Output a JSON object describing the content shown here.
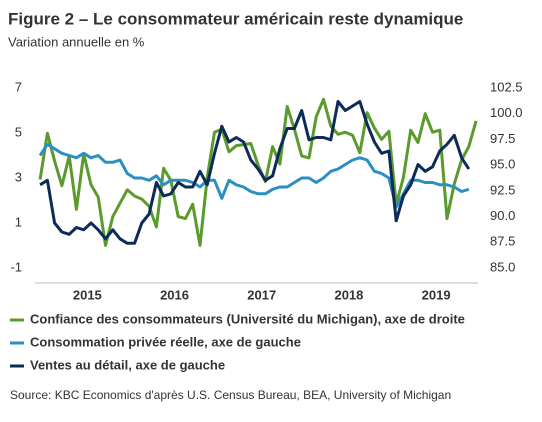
{
  "chart_data": {
    "type": "line",
    "title": "Figure 2 – Le consommateur américain reste dynamique",
    "subtitle": "Variation annuelle en %",
    "source": "Source: KBC Economics d'après U.S. Census Bureau, BEA, University of Michigan",
    "x": [
      2014.958,
      2015.042,
      2015.125,
      2015.208,
      2015.292,
      2015.375,
      2015.458,
      2015.542,
      2015.625,
      2015.708,
      2015.792,
      2015.875,
      2015.958,
      2016.042,
      2016.125,
      2016.208,
      2016.292,
      2016.375,
      2016.458,
      2016.542,
      2016.625,
      2016.708,
      2016.792,
      2016.875,
      2016.958,
      2017.042,
      2017.125,
      2017.208,
      2017.292,
      2017.375,
      2017.458,
      2017.542,
      2017.625,
      2017.708,
      2017.792,
      2017.875,
      2017.958,
      2018.042,
      2018.125,
      2018.208,
      2018.292,
      2018.375,
      2018.458,
      2018.542,
      2018.625,
      2018.708,
      2018.792,
      2018.875,
      2018.958,
      2019.042,
      2019.125,
      2019.208,
      2019.292,
      2019.375,
      2019.458,
      2019.542,
      2019.625,
      2019.708,
      2019.792,
      2019.875,
      2019.958
    ],
    "xlim": [
      2014.9,
      2019.98
    ],
    "xticks": [
      {
        "value": 2015.5,
        "label": "2015"
      },
      {
        "value": 2016.5,
        "label": "2016"
      },
      {
        "value": 2017.5,
        "label": "2017"
      },
      {
        "value": 2018.5,
        "label": "2018"
      },
      {
        "value": 2019.5,
        "label": "2019"
      }
    ],
    "ylim": [
      -1,
      7
    ],
    "yticks": [
      -1,
      1,
      3,
      5,
      7
    ],
    "y2lim": [
      85,
      102.5
    ],
    "y2ticks": [
      {
        "value": 85,
        "label": "85.0"
      },
      87.5,
      {
        "value": 90,
        "label": "90.0"
      },
      92.5,
      {
        "value": 95,
        "label": "95.0"
      },
      97.5,
      {
        "value": 100,
        "label": "100.0"
      },
      102.5
    ],
    "grid": false,
    "series": [
      {
        "name": "Confiance des consommateurs (Université du Michigan), axe de droite",
        "color": "#5b9a2c",
        "axis": "y2",
        "values": [
          93.6,
          98.1,
          95.4,
          93.0,
          95.9,
          90.7,
          96.1,
          93.1,
          91.9,
          87.2,
          90.0,
          91.3,
          92.6,
          92.0,
          91.7,
          91.0,
          89.0,
          94.7,
          93.5,
          90.0,
          89.8,
          91.2,
          87.2,
          93.8,
          98.2,
          98.5,
          96.3,
          96.9,
          97.0,
          97.1,
          95.0,
          93.4,
          96.8,
          95.1,
          100.7,
          98.5,
          95.9,
          95.7,
          99.7,
          101.4,
          98.8,
          98.0,
          98.2,
          97.9,
          96.2,
          100.1,
          98.6,
          97.5,
          98.3,
          91.2,
          93.8,
          98.4,
          97.2,
          100.0,
          98.2,
          98.4,
          89.8,
          93.2,
          95.5,
          96.8,
          99.3
        ]
      },
      {
        "name": "Consommation privée réelle, axe de gauche",
        "color": "#2b8fc1",
        "values": [
          4.0,
          4.5,
          4.3,
          4.1,
          4.0,
          3.9,
          4.1,
          3.9,
          4.0,
          3.7,
          3.7,
          3.8,
          3.2,
          3.0,
          3.0,
          2.9,
          3.1,
          2.7,
          2.9,
          2.9,
          2.9,
          2.8,
          2.6,
          2.9,
          2.9,
          2.1,
          2.9,
          2.7,
          2.6,
          2.4,
          2.3,
          2.3,
          2.5,
          2.6,
          2.6,
          2.8,
          3.0,
          3.0,
          2.8,
          3.0,
          3.3,
          3.4,
          3.6,
          3.8,
          3.9,
          3.8,
          3.3,
          3.2,
          3.0,
          1.7,
          2.3,
          2.9,
          2.9,
          2.8,
          2.8,
          2.7,
          2.7,
          2.6,
          2.4,
          2.5,
          null
        ]
      },
      {
        "name": "Ventes au détail, axe de gauche",
        "color": "#0d2b58",
        "values": [
          2.7,
          2.9,
          1.0,
          0.6,
          0.5,
          0.8,
          0.7,
          1.0,
          0.7,
          0.3,
          0.7,
          0.3,
          0.1,
          0.1,
          1.0,
          1.4,
          2.8,
          2.2,
          2.3,
          2.8,
          2.6,
          2.6,
          3.3,
          2.7,
          4.1,
          5.3,
          4.6,
          4.8,
          4.6,
          3.8,
          3.4,
          2.9,
          3.1,
          4.3,
          5.2,
          5.2,
          6.0,
          4.7,
          4.8,
          4.8,
          4.7,
          6.4,
          6.0,
          6.2,
          6.4,
          5.4,
          4.6,
          4.1,
          4.2,
          1.1,
          2.2,
          2.7,
          3.6,
          3.3,
          3.5,
          4.2,
          4.5,
          4.9,
          3.9,
          3.4,
          null
        ]
      }
    ]
  }
}
